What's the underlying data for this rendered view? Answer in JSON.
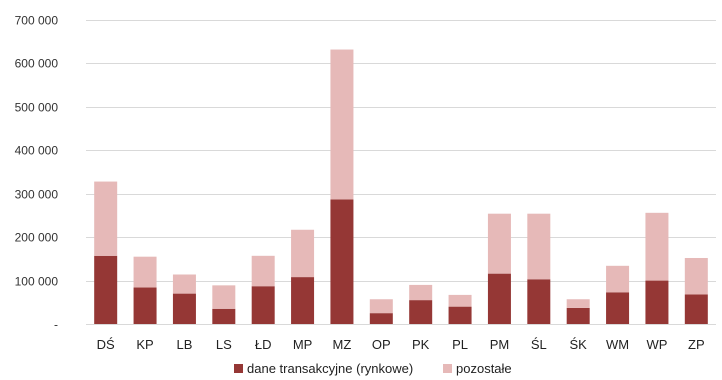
{
  "chart_data": {
    "type": "bar",
    "stacked": true,
    "categories": [
      "DŚ",
      "KP",
      "LB",
      "LS",
      "ŁD",
      "MP",
      "MZ",
      "OP",
      "PK",
      "PL",
      "PM",
      "ŚL",
      "ŚK",
      "WM",
      "WP",
      "ZP"
    ],
    "series": [
      {
        "name": "dane transakcyjne (rynkowe)",
        "color": "#953735",
        "values": [
          157000,
          84000,
          70000,
          35000,
          87000,
          108000,
          287000,
          25000,
          55000,
          40000,
          116000,
          103000,
          37000,
          73000,
          100000,
          68000
        ]
      },
      {
        "name": "pozostałe",
        "color": "#e6b9b8",
        "values": [
          171000,
          71000,
          44000,
          54000,
          70000,
          109000,
          345000,
          32000,
          35000,
          27000,
          138000,
          151000,
          20000,
          61000,
          156000,
          84000
        ]
      }
    ],
    "ylim": [
      0,
      700000
    ],
    "ytick_labels": [
      "-",
      "100 000",
      "200 000",
      "300 000",
      "400 000",
      "500 000",
      "600 000",
      "700 000"
    ],
    "ytick_values": [
      0,
      100000,
      200000,
      300000,
      400000,
      500000,
      600000,
      700000
    ],
    "grid": true,
    "legend": "bottom"
  }
}
